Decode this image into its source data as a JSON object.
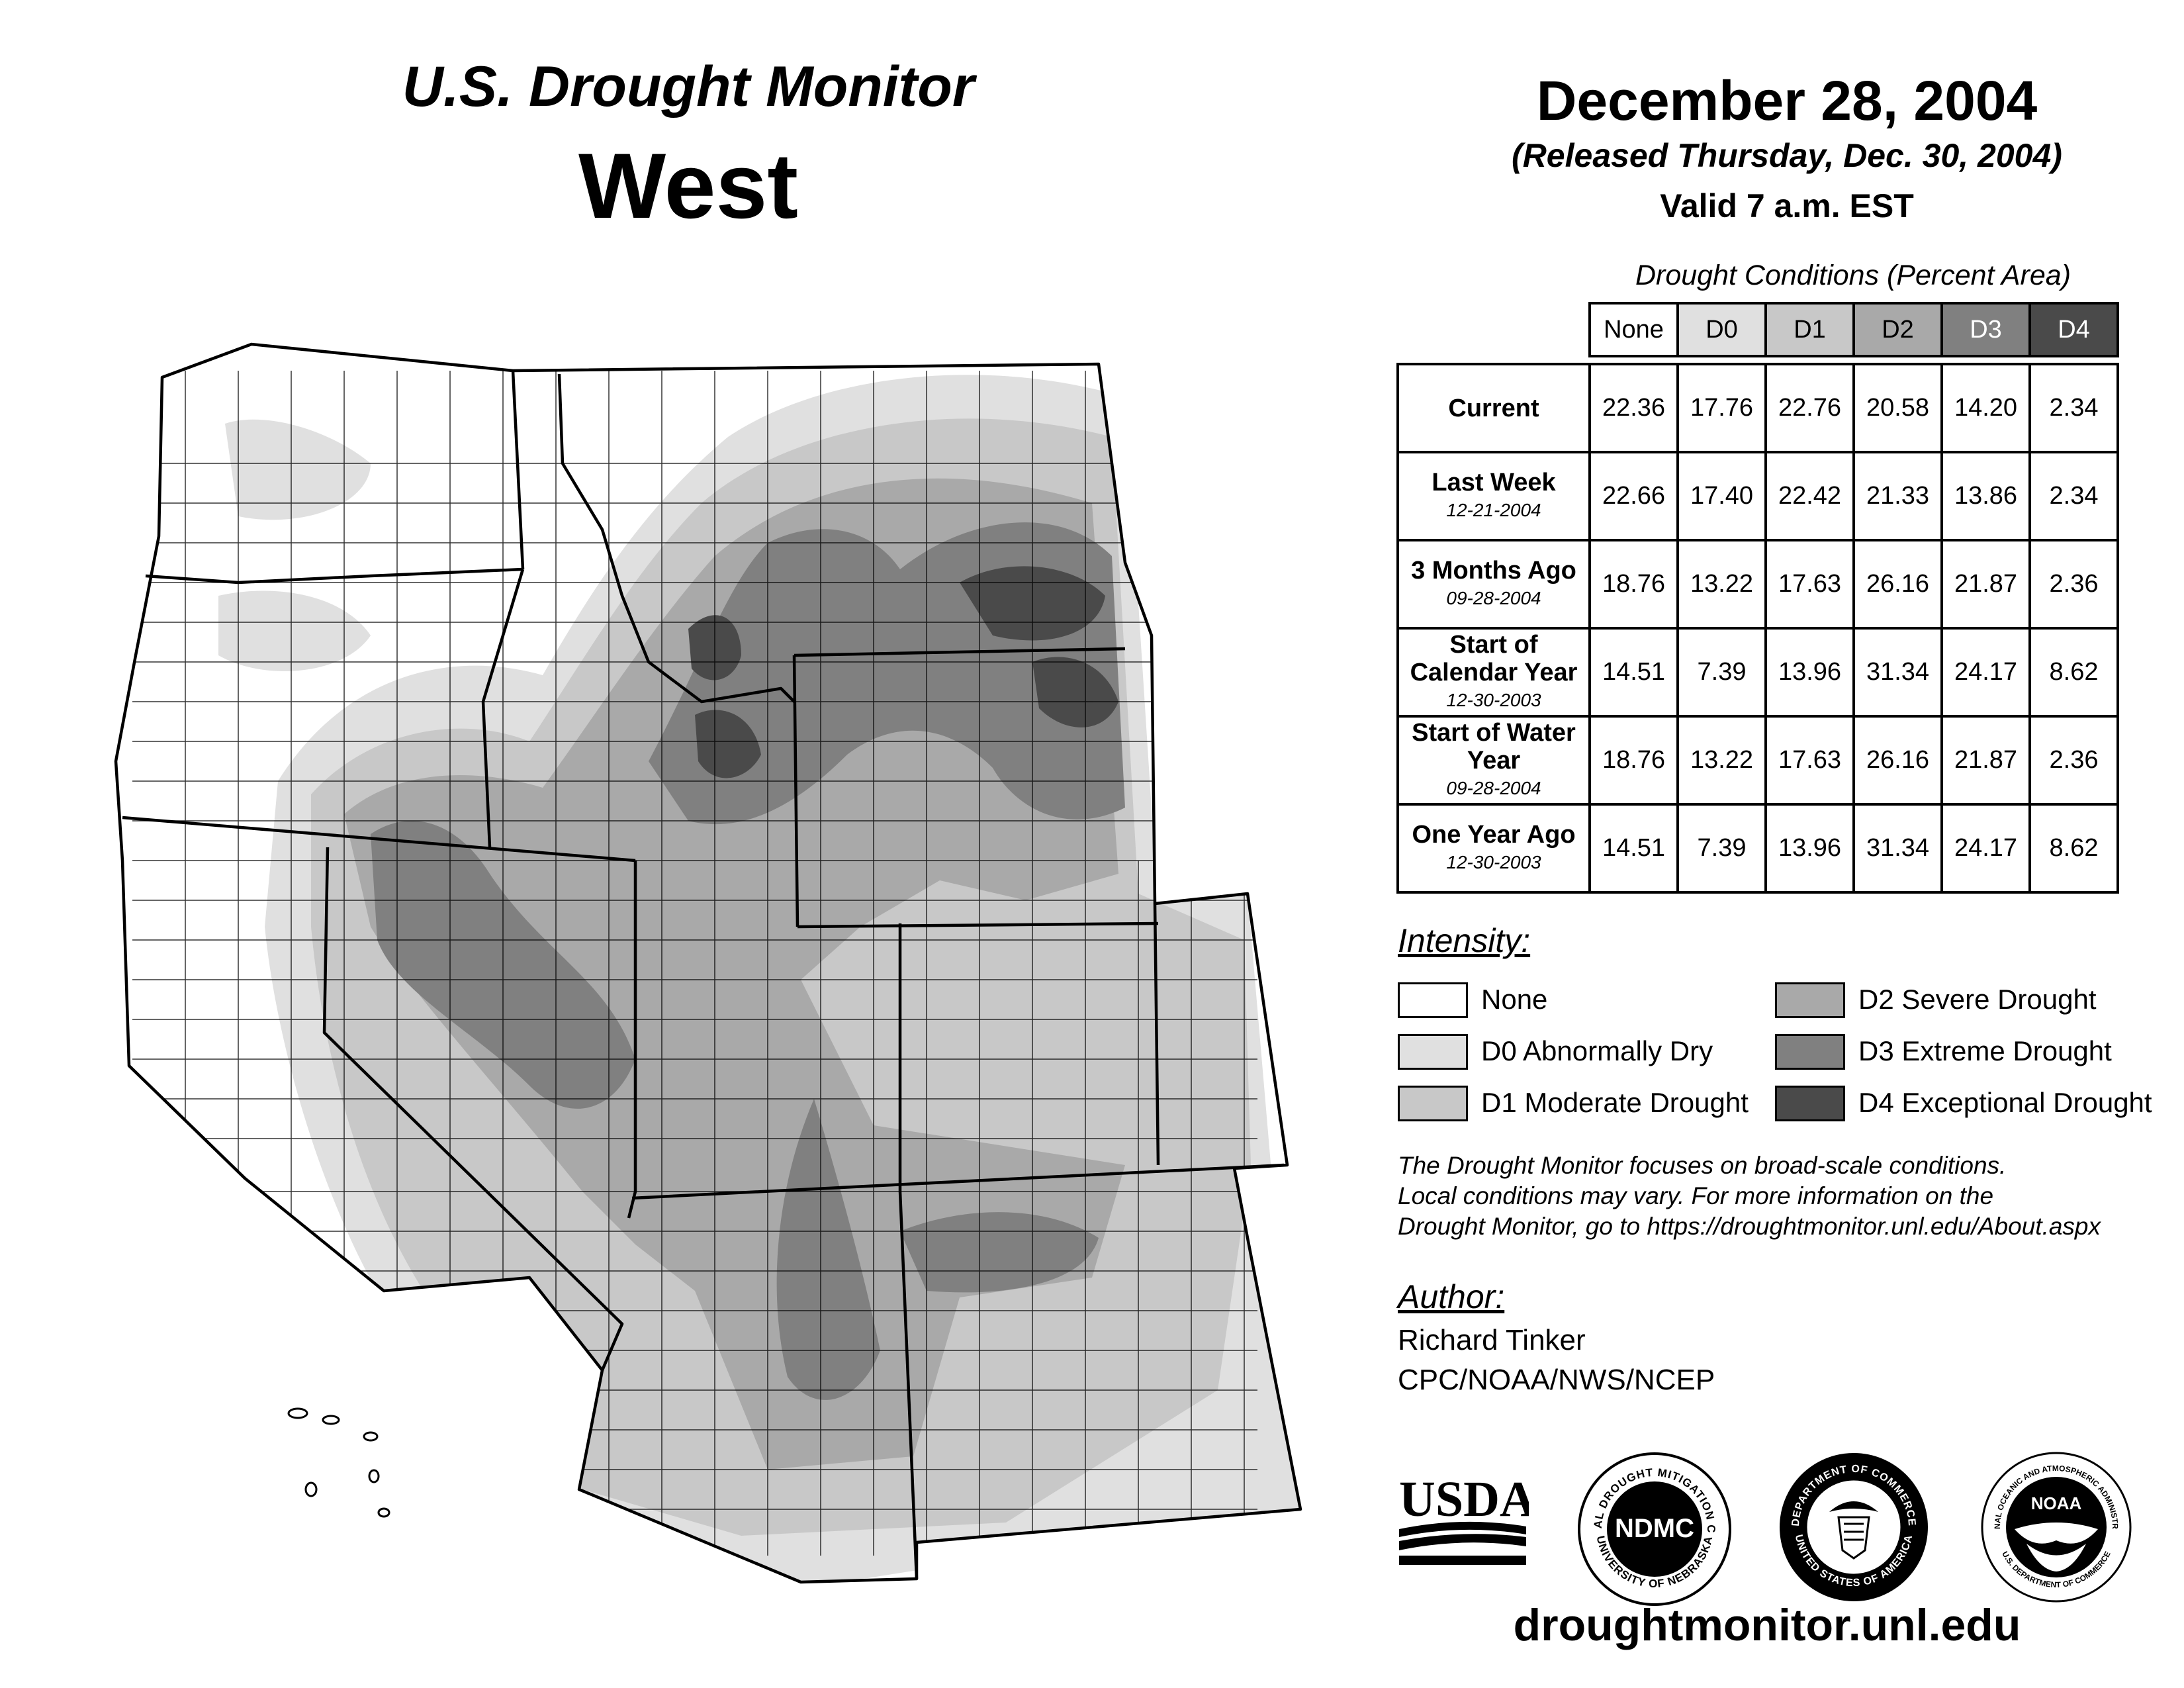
{
  "header": {
    "title_sub": "U.S. Drought Monitor",
    "title_main": "West",
    "date": "December 28, 2004",
    "released": "(Released Thursday, Dec. 30, 2004)",
    "valid": "Valid 7 a.m. EST"
  },
  "table": {
    "caption": "Drought Conditions (Percent Area)",
    "columns": [
      "None",
      "D0",
      "D1",
      "D2",
      "D3",
      "D4"
    ],
    "rows": [
      {
        "label": "Current",
        "date": "",
        "values": [
          "22.36",
          "17.76",
          "22.76",
          "20.58",
          "14.20",
          "2.34"
        ]
      },
      {
        "label": "Last Week",
        "date": "12-21-2004",
        "values": [
          "22.66",
          "17.40",
          "22.42",
          "21.33",
          "13.86",
          "2.34"
        ]
      },
      {
        "label": "3 Months Ago",
        "date": "09-28-2004",
        "values": [
          "18.76",
          "13.22",
          "17.63",
          "26.16",
          "21.87",
          "2.36"
        ]
      },
      {
        "label": "Start of Calendar Year",
        "date": "12-30-2003",
        "values": [
          "14.51",
          "7.39",
          "13.96",
          "31.34",
          "24.17",
          "8.62"
        ]
      },
      {
        "label": "Start of Water Year",
        "date": "09-28-2004",
        "values": [
          "18.76",
          "13.22",
          "17.63",
          "26.16",
          "21.87",
          "2.36"
        ]
      },
      {
        "label": "One Year Ago",
        "date": "12-30-2003",
        "values": [
          "14.51",
          "7.39",
          "13.96",
          "31.34",
          "24.17",
          "8.62"
        ]
      }
    ]
  },
  "legend": {
    "title": "Intensity:",
    "items": [
      {
        "label": "None",
        "color": "#ffffff"
      },
      {
        "label": "D0 Abnormally Dry",
        "color": "#e0e0e0"
      },
      {
        "label": "D1 Moderate Drought",
        "color": "#c8c8c8"
      },
      {
        "label": "D2 Severe Drought",
        "color": "#a9a9a9"
      },
      {
        "label": "D3 Extreme Drought",
        "color": "#808080"
      },
      {
        "label": "D4 Exceptional Drought",
        "color": "#4a4a4a"
      }
    ]
  },
  "note": [
    "The Drought Monitor focuses on broad-scale conditions.",
    "Local conditions may vary. For more information on the",
    "Drought Monitor, go to https://droughtmonitor.unl.edu/About.aspx"
  ],
  "author": {
    "title": "Author:",
    "name": "Richard Tinker",
    "org": "CPC/NOAA/NWS/NCEP"
  },
  "logos": {
    "usda": "USDA",
    "ndmc": "NDMC",
    "ndmc_ring_top": "NATIONAL DROUGHT MITIGATION CENTER",
    "ndmc_ring_bottom": "UNIVERSITY OF NEBRASKA",
    "doc_ring_top": "DEPARTMENT OF COMMERCE",
    "doc_ring_bottom": "UNITED STATES OF AMERICA",
    "noaa": "NOAA",
    "noaa_ring_top": "NATIONAL OCEANIC AND ATMOSPHERIC ADMINISTRATION",
    "noaa_ring_bottom": "U.S. DEPARTMENT OF COMMERCE"
  },
  "website": "droughtmonitor.unl.edu",
  "colors": {
    "none": "#ffffff",
    "d0": "#e0e0e0",
    "d1": "#c8c8c8",
    "d2": "#a9a9a9",
    "d3": "#808080",
    "d4": "#4a4a4a"
  }
}
